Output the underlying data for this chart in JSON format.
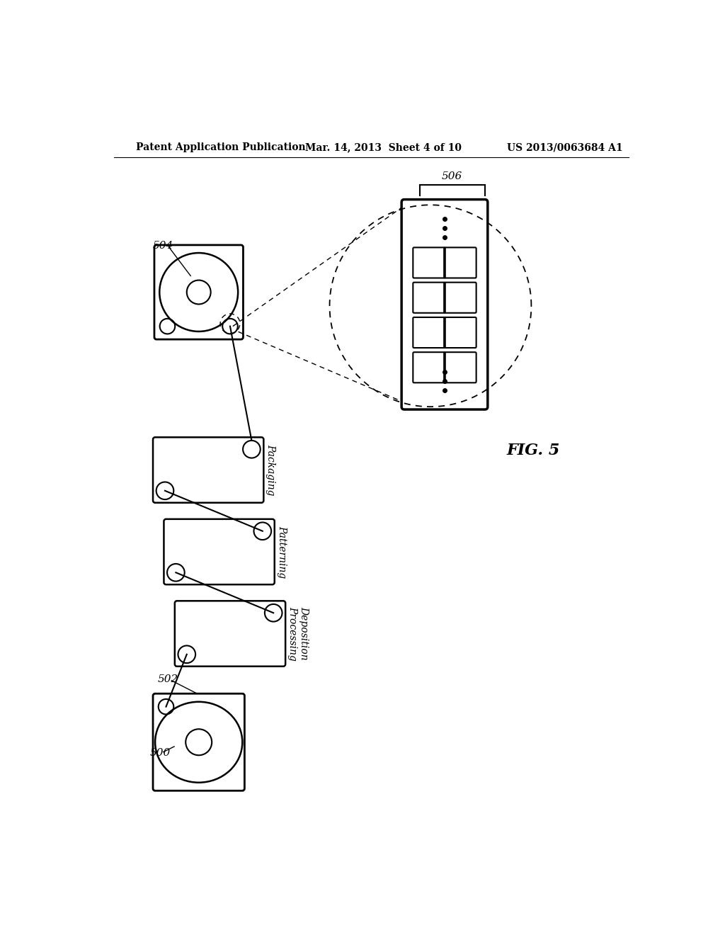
{
  "header_left": "Patent Application Publication",
  "header_mid": "Mar. 14, 2013  Sheet 4 of 10",
  "header_right": "US 2013/0063684 A1",
  "fig_label": "FIG. 5",
  "bg_color": "#ffffff",
  "line_color": "#000000",
  "label_506": "506",
  "label_504": "504",
  "label_500": "500",
  "label_502": "502",
  "label_packaging": "Packaging",
  "label_patterning": "Patterning",
  "label_deposition": "Deposition\nProcessing"
}
